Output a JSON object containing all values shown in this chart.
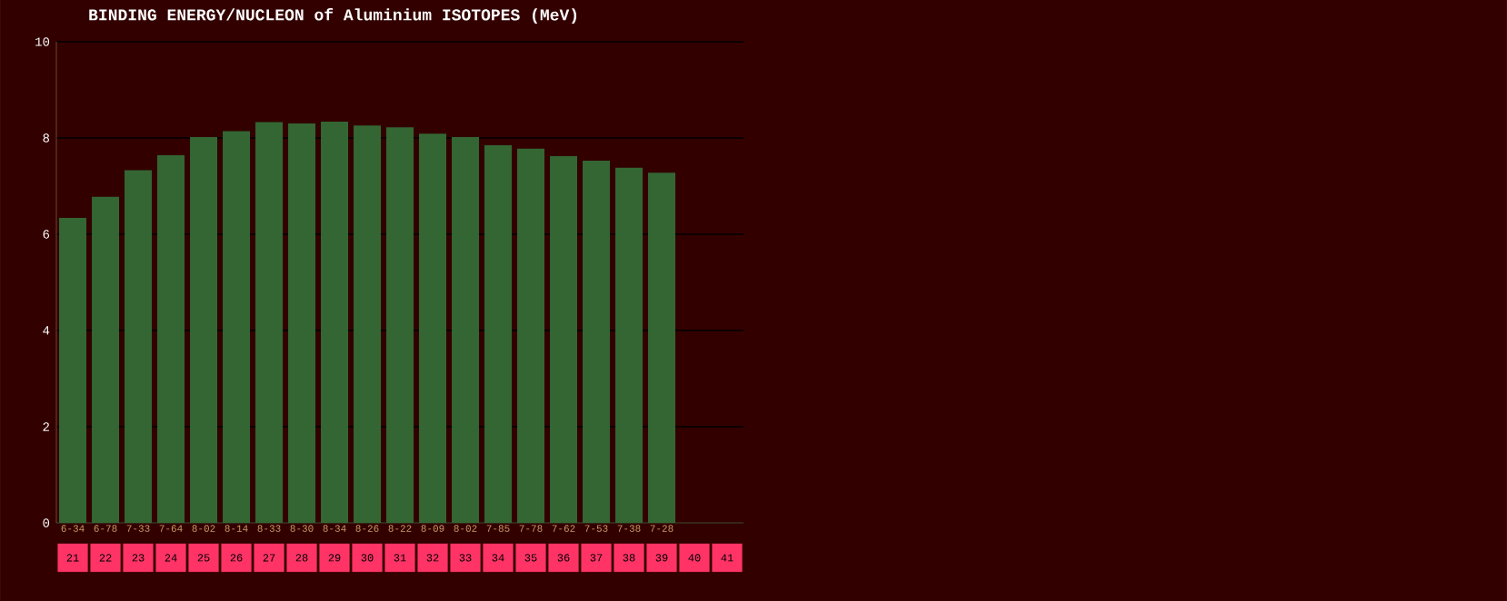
{
  "chart_data": {
    "type": "bar",
    "title": "BINDING ENERGY/NUCLEON of Aluminium ISOTOPES (MeV)",
    "categories": [
      "21",
      "22",
      "23",
      "24",
      "25",
      "26",
      "27",
      "28",
      "29",
      "30",
      "31",
      "32",
      "33",
      "34",
      "35",
      "36",
      "37",
      "38",
      "39",
      "40",
      "41"
    ],
    "values": [
      6.34,
      6.78,
      7.33,
      7.64,
      8.02,
      8.14,
      8.33,
      8.3,
      8.34,
      8.26,
      8.22,
      8.09,
      8.02,
      7.85,
      7.78,
      7.62,
      7.53,
      7.38,
      7.28,
      null,
      null
    ],
    "value_labels": [
      "6-34",
      "6-78",
      "7-33",
      "7-64",
      "8-02",
      "8-14",
      "8-33",
      "8-30",
      "8-34",
      "8-26",
      "8-22",
      "8-09",
      "8-02",
      "7-85",
      "7-78",
      "7-62",
      "7-53",
      "7-38",
      "7-28",
      null,
      null
    ],
    "color": "#336633",
    "ylim": [
      0,
      10
    ],
    "yticks": [
      0,
      2,
      4,
      6,
      8,
      10
    ],
    "grid": "y"
  }
}
